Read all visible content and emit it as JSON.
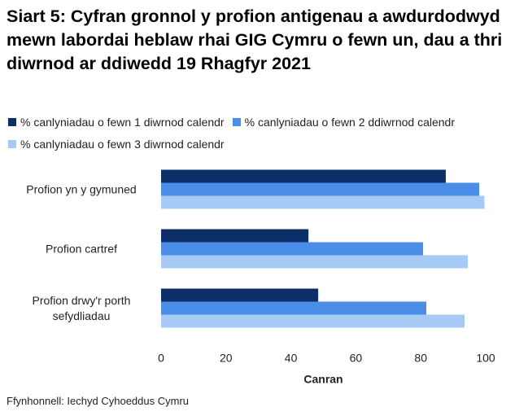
{
  "chart_data": {
    "type": "hbar",
    "title": "Siart 5: Cyfran gronnol y profion antigenau a awdurdodwyd mewn labordai heblaw rhai GIG Cymru o fewn un, dau a thri diwrnod ar ddiwedd 19 Rhagfyr 2021",
    "categories": [
      "Profion yn y gymuned",
      "Profion cartref",
      "Profion drwy'r porth sefydliadau"
    ],
    "series": [
      {
        "name": "% canlyniadau o fewn 1 diwrnod calendr",
        "color": "#0c2f6a",
        "values": [
          87.7,
          45.4,
          48.4
        ]
      },
      {
        "name": "% canlyniadau o fewn 2 ddiwrnod calendr",
        "color": "#4a8ee8",
        "values": [
          98.0,
          80.7,
          81.7
        ]
      },
      {
        "name": "% canlyniadau o fewn 3 diwrnod calendr",
        "color": "#a6c9f6",
        "values": [
          99.6,
          94.5,
          93.5
        ]
      }
    ],
    "x_label": "Canran",
    "xlim": [
      0,
      100
    ],
    "xticks": [
      0,
      20,
      40,
      60,
      80,
      100
    ],
    "source": "Ffynhonnell: Iechyd Cyhoeddus Cymru"
  }
}
